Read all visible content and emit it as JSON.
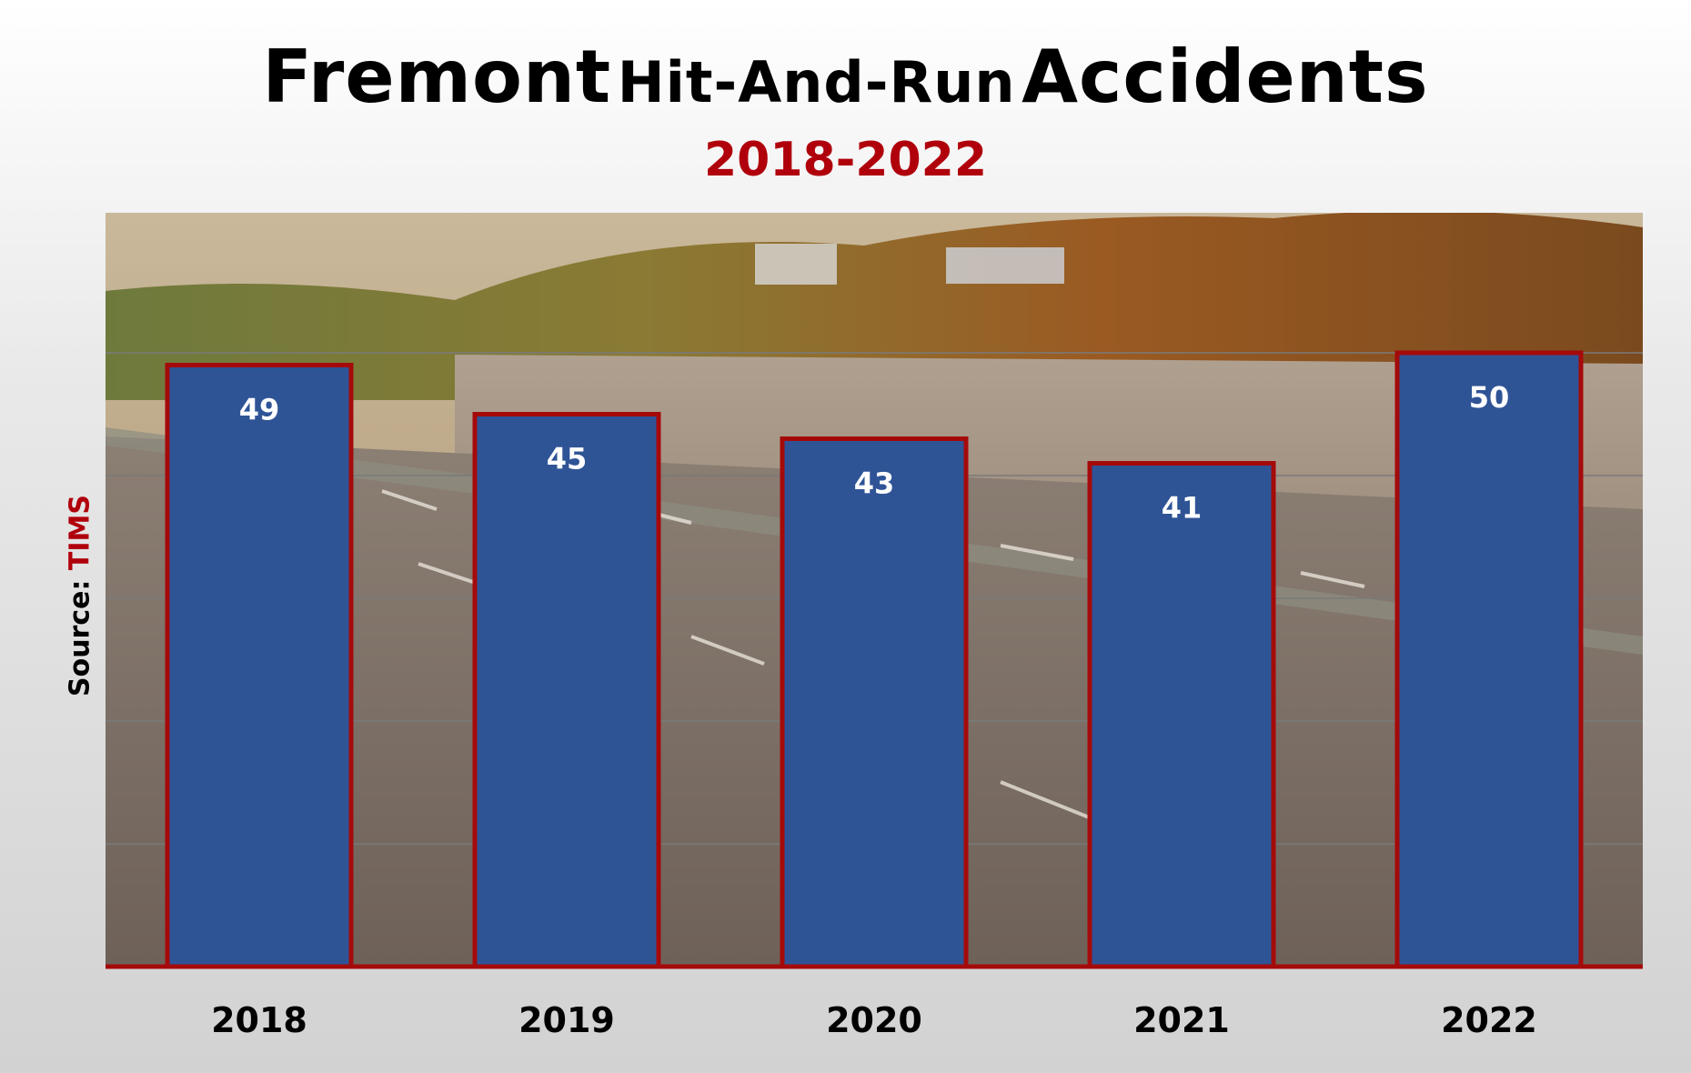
{
  "title_parts": {
    "city": "Fremont",
    "hit_and_run": "Hit-And-Run",
    "accidents": "Accidents"
  },
  "subtitle": "2018-2022",
  "source": {
    "label": "Source:",
    "name": "TIMS"
  },
  "colors": {
    "bar_fill": "#2f5496",
    "bar_border": "#a50a0a",
    "subtitle": "#b0000c",
    "label_text": "#ffffff",
    "axis": "#a50a0a"
  },
  "chart_data": {
    "type": "bar",
    "title": "Fremont Hit-And-Run Accidents",
    "subtitle": "2018-2022",
    "categories": [
      "2018",
      "2019",
      "2020",
      "2021",
      "2022"
    ],
    "values": [
      49,
      45,
      43,
      41,
      50
    ],
    "data_labels": [
      "49",
      "45",
      "43",
      "41",
      "50"
    ],
    "xlabel": "",
    "ylabel": "",
    "ylim": [
      0,
      50
    ],
    "y_axis_visible": false,
    "grid": true,
    "legend": "none",
    "background": "photo of a highway with autumn trees"
  }
}
